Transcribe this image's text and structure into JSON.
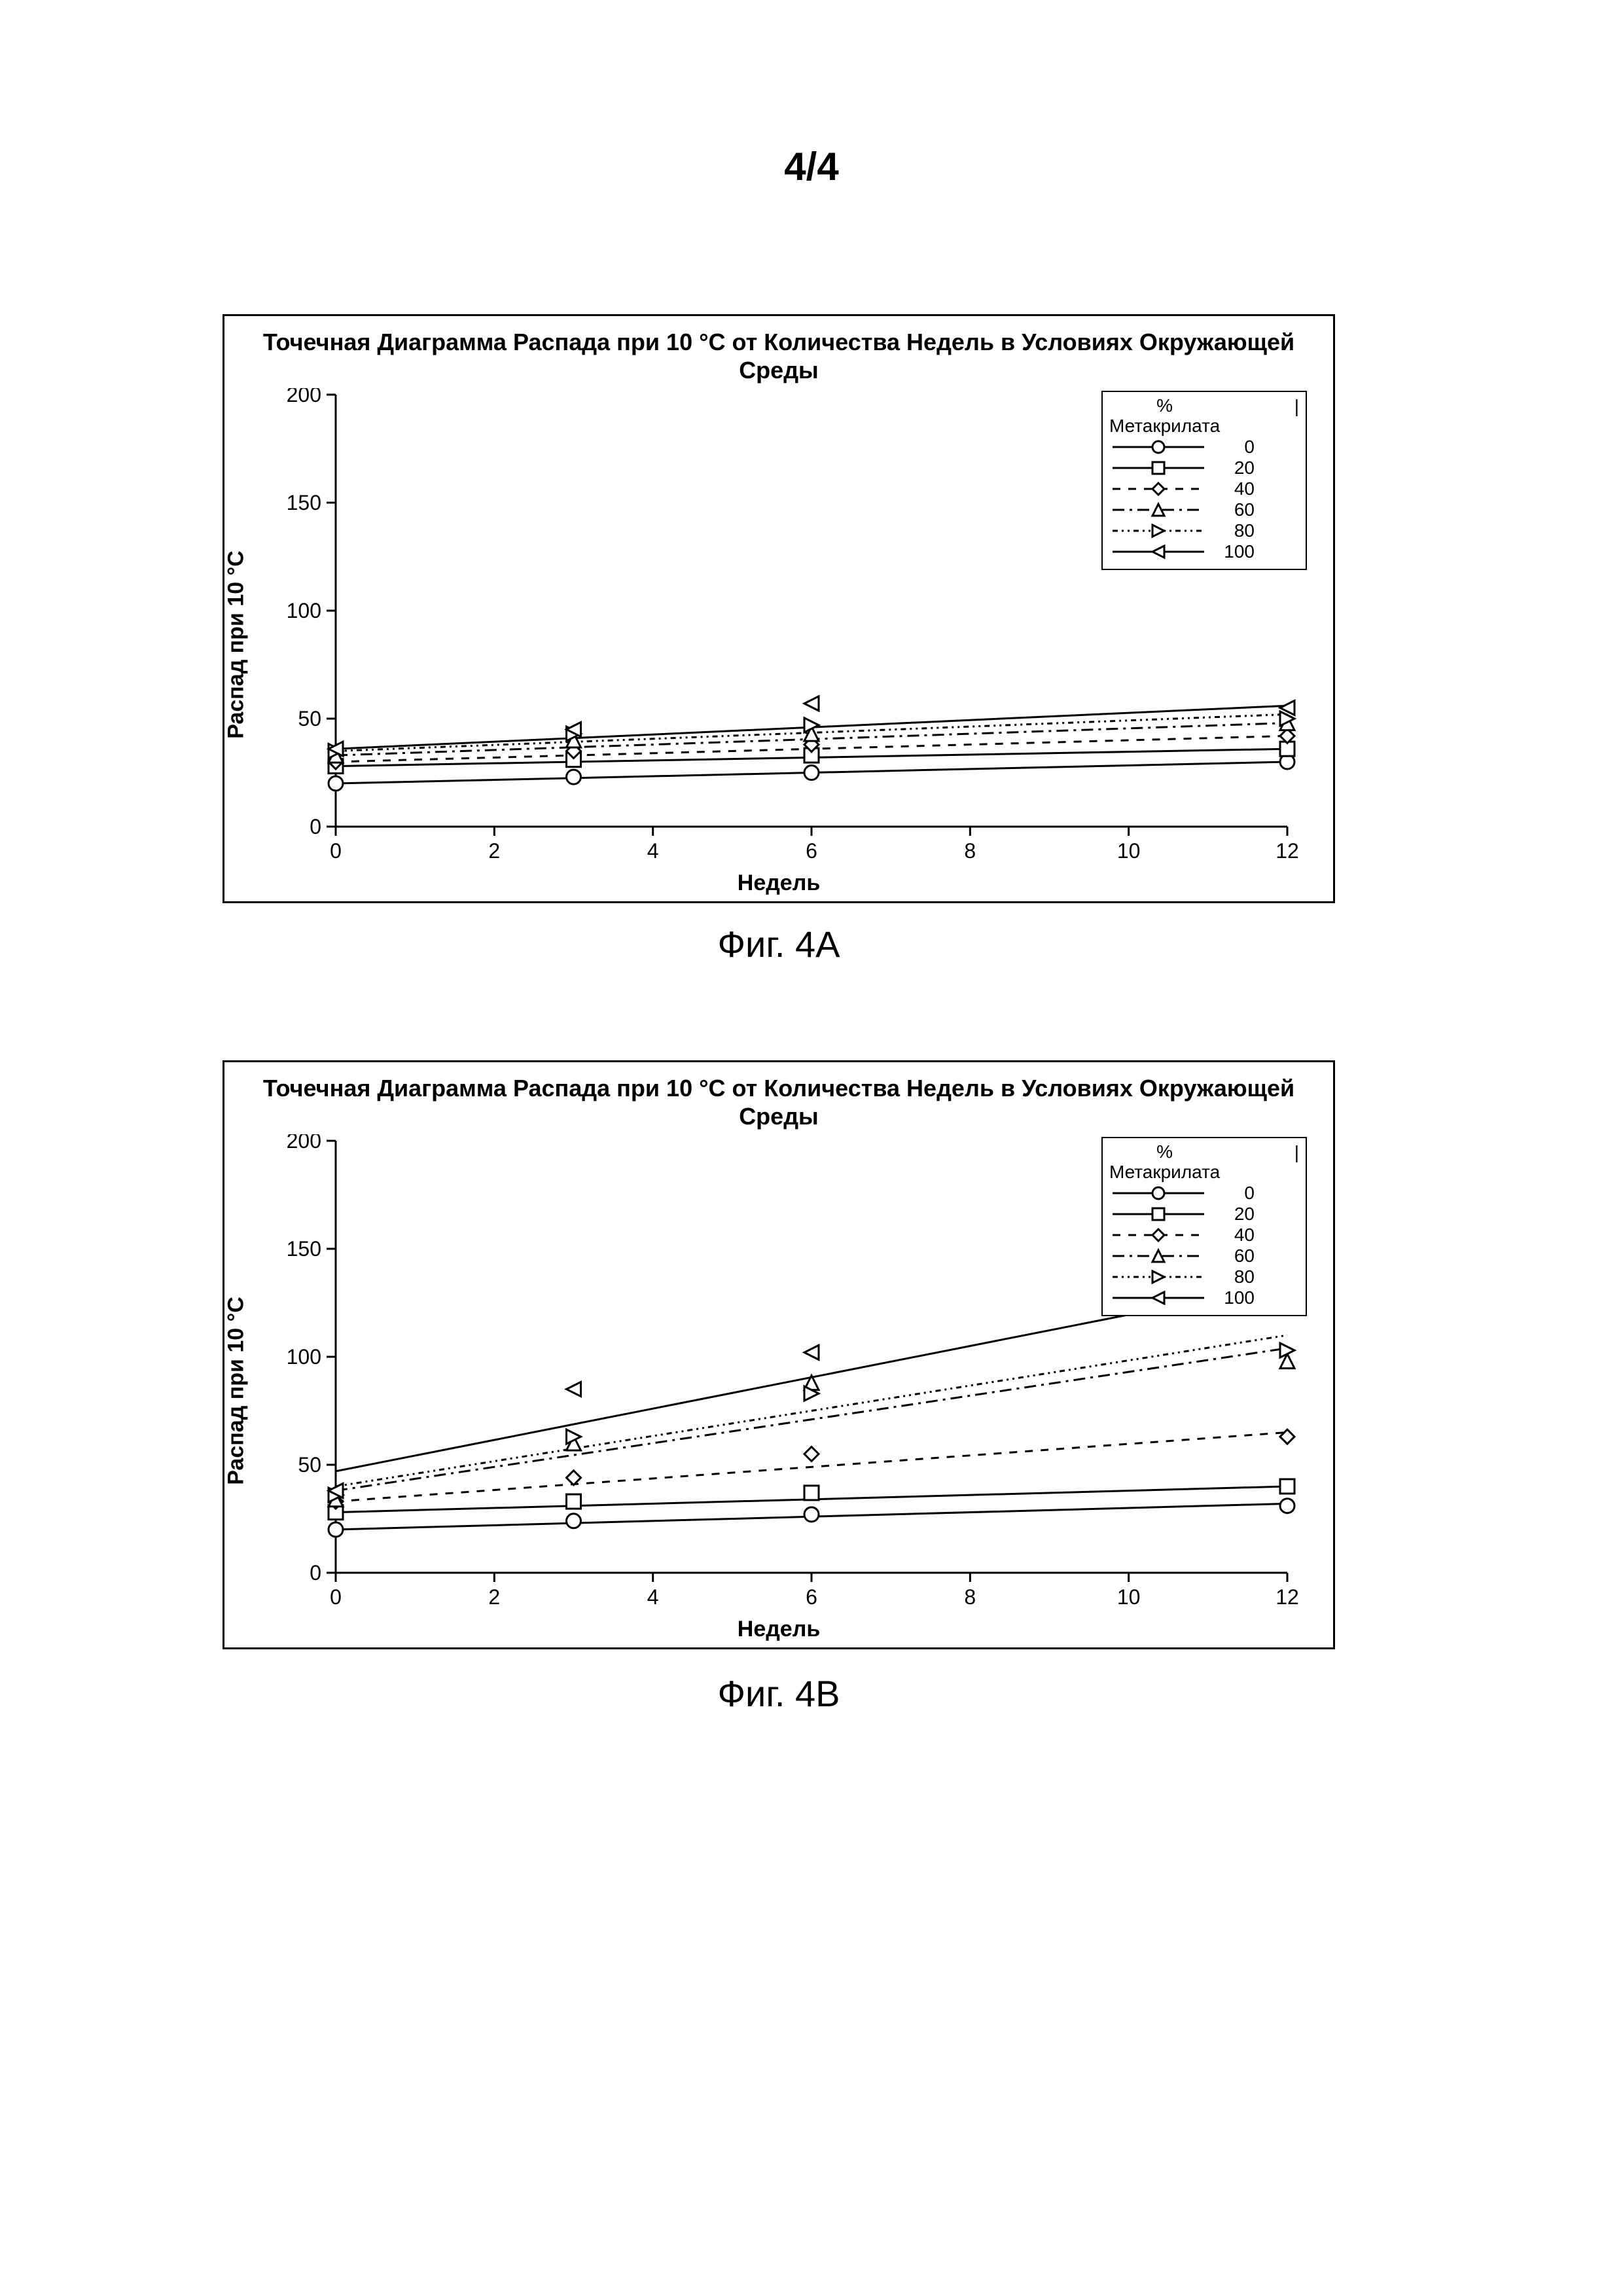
{
  "page_number": "4/4",
  "caption_a": "Фиг. 4A",
  "caption_b": "Фиг. 4B",
  "chart_title": "Точечная Диаграмма Распада при 10 °C от Количества Недель в Условиях Окружающей Среды",
  "y_axis_label": "Распад при 10 °C",
  "x_axis_label": "Недель",
  "legend_title_line1": "%",
  "legend_title_line2": "Метакрилата",
  "legend_bar": "|",
  "colors": {
    "background": "#ffffff",
    "frame": "#000000",
    "axis": "#000000",
    "line": "#000000",
    "text": "#000000"
  },
  "axes": {
    "xlim": [
      0,
      12
    ],
    "ylim": [
      0,
      200
    ],
    "xticks": [
      0,
      2,
      4,
      6,
      8,
      10,
      12
    ],
    "yticks": [
      0,
      50,
      100,
      150,
      200
    ],
    "tick_fontsize": 32,
    "label_fontsize": 34,
    "line_width": 3
  },
  "series_defs": [
    {
      "id": "s0",
      "label": "0",
      "marker": "circle",
      "dash": ""
    },
    {
      "id": "s20",
      "label": "20",
      "marker": "square",
      "dash": ""
    },
    {
      "id": "s40",
      "label": "40",
      "marker": "diamond",
      "dash": "12,12"
    },
    {
      "id": "s60",
      "label": "60",
      "marker": "triangle_up",
      "dash": "18,8,4,8"
    },
    {
      "id": "s80",
      "label": "80",
      "marker": "triangle_right",
      "dash": "8,6,3,6,3,6"
    },
    {
      "id": "s100",
      "label": "100",
      "marker": "triangle_left",
      "dash": ""
    }
  ],
  "chart_a": {
    "type": "scatter_line",
    "x_points": [
      0,
      3,
      6,
      12
    ],
    "series": {
      "s0": {
        "points": [
          20,
          23,
          25,
          30
        ],
        "fit": [
          20,
          30
        ]
      },
      "s20": {
        "points": [
          28,
          31,
          33,
          36
        ],
        "fit": [
          28,
          36
        ]
      },
      "s40": {
        "points": [
          30,
          35,
          38,
          42
        ],
        "fit": [
          30,
          42
        ]
      },
      "s60": {
        "points": [
          33,
          40,
          43,
          48
        ],
        "fit": [
          33,
          48
        ]
      },
      "s80": {
        "points": [
          35,
          43,
          47,
          50
        ],
        "fit": [
          35,
          52
        ]
      },
      "s100": {
        "points": [
          36,
          45,
          57,
          55
        ],
        "fit": [
          36,
          56
        ]
      }
    }
  },
  "chart_b": {
    "type": "scatter_line",
    "x_points": [
      0,
      3,
      6,
      12
    ],
    "series": {
      "s0": {
        "points": [
          20,
          24,
          27,
          31
        ],
        "fit": [
          20,
          32
        ]
      },
      "s20": {
        "points": [
          28,
          33,
          37,
          40
        ],
        "fit": [
          28,
          40
        ]
      },
      "s40": {
        "points": [
          33,
          44,
          55,
          63
        ],
        "fit": [
          33,
          65
        ]
      },
      "s60": {
        "points": [
          34,
          60,
          88,
          98
        ],
        "fit": [
          38,
          104
        ]
      },
      "s80": {
        "points": [
          36,
          63,
          83,
          103
        ],
        "fit": [
          40,
          110
        ]
      },
      "s100": {
        "points": [
          38,
          85,
          102,
          127
        ],
        "fit": [
          47,
          134
        ]
      }
    }
  }
}
